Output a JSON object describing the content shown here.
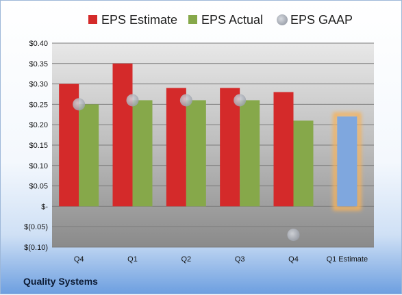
{
  "company": "Quality Systems",
  "colors": {
    "estimate": "#d42a2a",
    "actual": "#86a84a",
    "gaap": "#b8bcc4",
    "future_estimate": "#7fa7de",
    "future_glow": "#f5b25c"
  },
  "chart_data": {
    "type": "bar",
    "title": "",
    "xlabel": "",
    "ylabel": "",
    "categories": [
      "Q4",
      "Q1",
      "Q2",
      "Q3",
      "Q4",
      "Q1 Estimate"
    ],
    "series": [
      {
        "name": "EPS Estimate",
        "values": [
          0.3,
          0.35,
          0.29,
          0.29,
          0.28,
          null
        ]
      },
      {
        "name": "EPS Actual",
        "values": [
          0.25,
          0.26,
          0.26,
          0.26,
          0.21,
          0.22
        ]
      },
      {
        "name": "EPS GAAP",
        "values": [
          0.25,
          0.26,
          0.26,
          0.26,
          -0.07,
          null
        ]
      }
    ],
    "ylim": [
      -0.1,
      0.4
    ],
    "yticks": [
      -0.1,
      -0.05,
      0,
      0.05,
      0.1,
      0.15,
      0.2,
      0.25,
      0.3,
      0.35,
      0.4
    ],
    "ytick_labels": [
      "$(0.10)",
      "$(0.05)",
      "$-",
      "$0.05",
      "$0.10",
      "$0.15",
      "$0.20",
      "$0.25",
      "$0.30",
      "$0.35",
      "$0.40"
    ],
    "highlighted_category": "Q1 Estimate",
    "legend_position": "top",
    "grid": true
  }
}
